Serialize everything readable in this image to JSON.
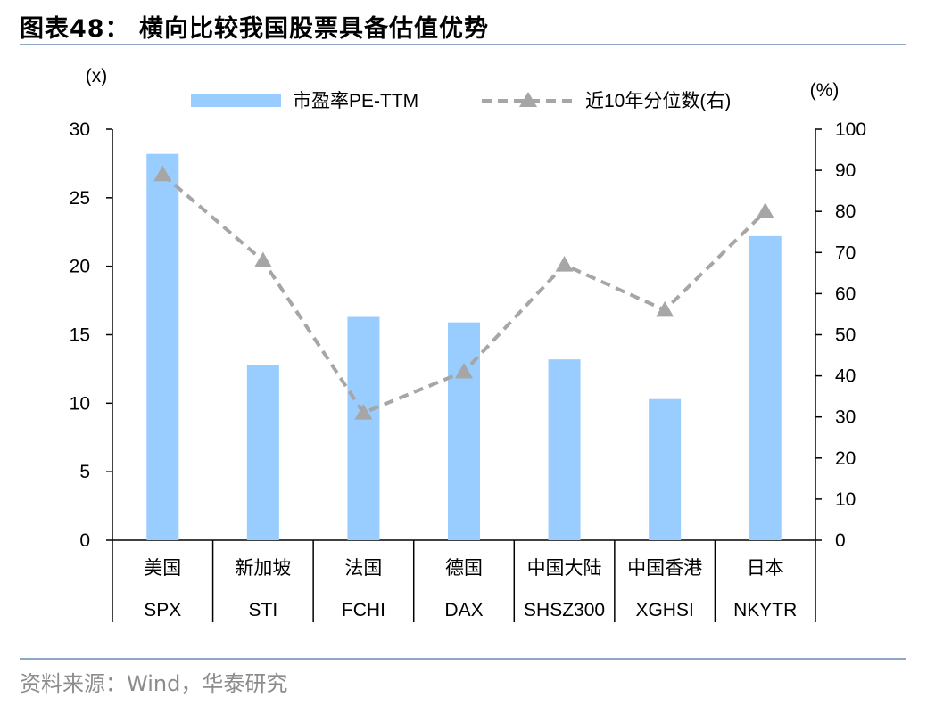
{
  "figure": {
    "title": "图表48：  横向比较我国股票具备估值优势",
    "source": "资料来源：Wind，华泰研究"
  },
  "colors": {
    "bar": "#99ccff",
    "line": "#a6a6a6",
    "rule": "#8da7c9",
    "source_text": "#8c8c8c"
  },
  "chart_data": {
    "type": "bar",
    "secondary_type": "line",
    "left_unit": "(x)",
    "right_unit": "(%)",
    "categories": [
      "美国",
      "新加坡",
      "法国",
      "德国",
      "中国大陆",
      "中国香港",
      "日本"
    ],
    "tickers": [
      "SPX",
      "STI",
      "FCHI",
      "DAX",
      "SHSZ300",
      "XGHSI",
      "NKYTR"
    ],
    "series": [
      {
        "name": "市盈率PE-TTM",
        "axis": "left",
        "type": "bar",
        "values": [
          28.2,
          12.8,
          16.3,
          15.9,
          13.2,
          10.3,
          22.2
        ]
      },
      {
        "name": "近10年分位数(右)",
        "axis": "right",
        "type": "line",
        "marker": "triangle",
        "dash": "dashed",
        "values": [
          89,
          68,
          31,
          41,
          67,
          56,
          80
        ]
      }
    ],
    "y_left": {
      "min": 0,
      "max": 30,
      "ticks": [
        0,
        5,
        10,
        15,
        20,
        25,
        30
      ]
    },
    "y_right": {
      "min": 0,
      "max": 100,
      "ticks": [
        0,
        10,
        20,
        30,
        40,
        50,
        60,
        70,
        80,
        90,
        100
      ]
    },
    "legend_position": "top",
    "grid": false
  }
}
